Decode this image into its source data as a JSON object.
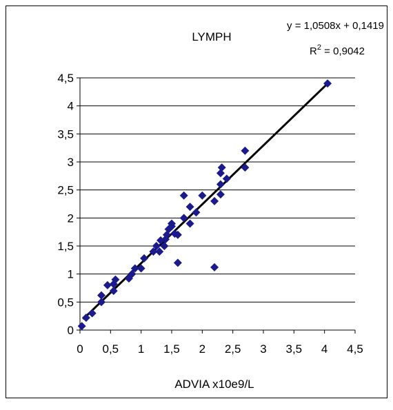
{
  "chart_data": {
    "type": "scatter",
    "title": "LYMPH",
    "xlabel": "ADVIA x10e9/L",
    "ylabel": "",
    "xlim": [
      0,
      4.5
    ],
    "ylim": [
      0,
      4.5
    ],
    "x_ticks": [
      "0",
      "0,5",
      "1",
      "1,5",
      "2",
      "2,5",
      "3",
      "3,5",
      "4",
      "4,5"
    ],
    "y_ticks": [
      "0",
      "0,5",
      "1",
      "1,5",
      "2",
      "2,5",
      "3",
      "3,5",
      "4",
      "4,5"
    ],
    "grid": "horizontal",
    "legend": "none",
    "point_color": "#1a1a8c",
    "line_color": "#000000",
    "trendline": {
      "slope": 1.0508,
      "intercept": 0.1419,
      "x_range": [
        0.05,
        4.05
      ],
      "equation": "y = 1,0508x + 0,1419",
      "r2_prefix": "R",
      "r2_sup": "2",
      "r2_value": " = 0,9042"
    },
    "points": [
      [
        0.03,
        0.07
      ],
      [
        0.1,
        0.22
      ],
      [
        0.2,
        0.3
      ],
      [
        0.35,
        0.5
      ],
      [
        0.35,
        0.62
      ],
      [
        0.45,
        0.8
      ],
      [
        0.55,
        0.7
      ],
      [
        0.55,
        0.82
      ],
      [
        0.58,
        0.9
      ],
      [
        0.8,
        0.92
      ],
      [
        0.85,
        1.0
      ],
      [
        0.9,
        1.1
      ],
      [
        1.0,
        1.1
      ],
      [
        1.05,
        1.28
      ],
      [
        1.2,
        1.4
      ],
      [
        1.25,
        1.5
      ],
      [
        1.3,
        1.4
      ],
      [
        1.32,
        1.6
      ],
      [
        1.38,
        1.5
      ],
      [
        1.4,
        1.62
      ],
      [
        1.42,
        1.7
      ],
      [
        1.45,
        1.8
      ],
      [
        1.5,
        1.85
      ],
      [
        1.5,
        1.9
      ],
      [
        1.55,
        1.72
      ],
      [
        1.6,
        1.7
      ],
      [
        1.6,
        1.2
      ],
      [
        1.7,
        2.0
      ],
      [
        1.7,
        2.4
      ],
      [
        1.8,
        1.9
      ],
      [
        1.8,
        2.2
      ],
      [
        1.9,
        2.1
      ],
      [
        2.0,
        2.4
      ],
      [
        2.2,
        2.3
      ],
      [
        2.2,
        1.12
      ],
      [
        2.3,
        2.42
      ],
      [
        2.3,
        2.6
      ],
      [
        2.3,
        2.8
      ],
      [
        2.32,
        2.9
      ],
      [
        2.4,
        2.7
      ],
      [
        2.7,
        2.9
      ],
      [
        2.7,
        3.2
      ],
      [
        4.05,
        4.4
      ]
    ]
  }
}
